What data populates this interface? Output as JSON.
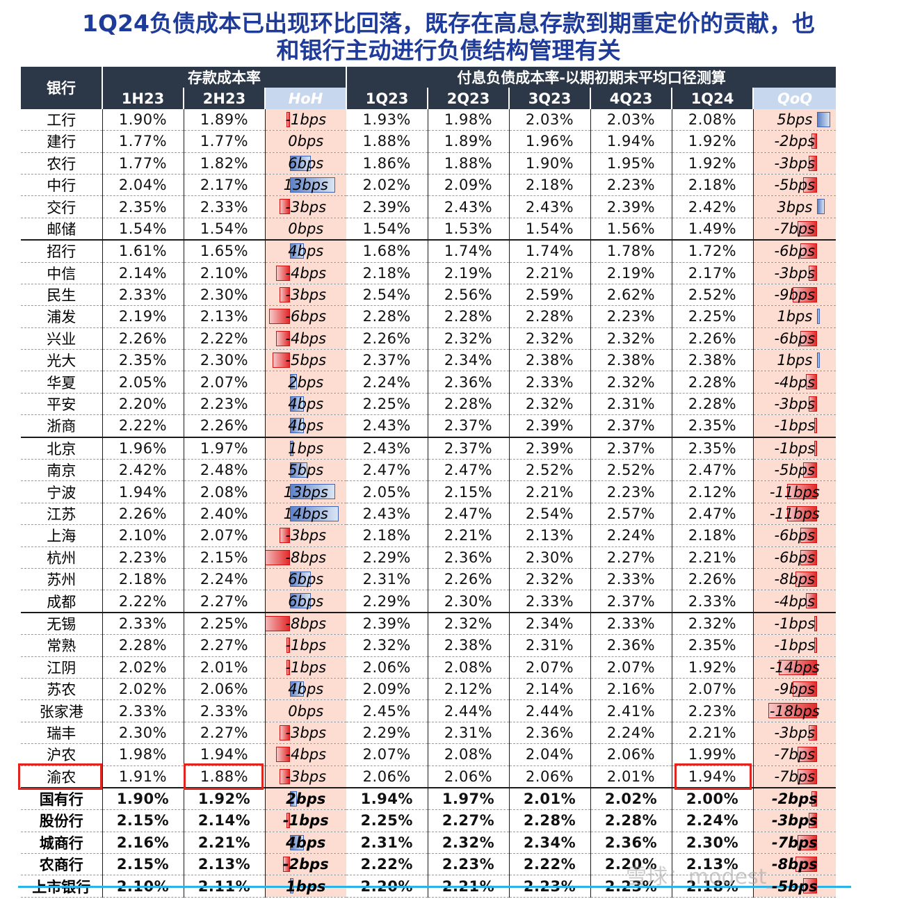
{
  "title": {
    "line1": "1Q24负债成本已出现环比回落，既存在高息存款到期重定价的贡献，也",
    "line2": "和银行主动进行负债结构管理有关"
  },
  "headers": {
    "bank": "银行",
    "group1": "存款成本率",
    "group2": "付息负债成本率-以期初期末平均口径测算",
    "cols": [
      "1H23",
      "2H23",
      "HoH",
      "1Q23",
      "2Q23",
      "3Q23",
      "4Q23",
      "1Q24",
      "QoQ"
    ]
  },
  "rows": [
    {
      "bank": "工行",
      "h1": "1.90%",
      "h2": "1.89%",
      "hoh": "-1bps",
      "hv": -1,
      "q1": "1.93%",
      "q2": "1.98%",
      "q3": "2.03%",
      "q4": "2.03%",
      "q5": "2.08%",
      "qoq": "5bps",
      "qv": 5
    },
    {
      "bank": "建行",
      "h1": "1.77%",
      "h2": "1.77%",
      "hoh": "0bps",
      "hv": 0,
      "q1": "1.88%",
      "q2": "1.89%",
      "q3": "1.96%",
      "q4": "1.94%",
      "q5": "1.92%",
      "qoq": "-2bps",
      "qv": -2
    },
    {
      "bank": "农行",
      "h1": "1.77%",
      "h2": "1.82%",
      "hoh": "6bps",
      "hv": 6,
      "q1": "1.86%",
      "q2": "1.88%",
      "q3": "1.90%",
      "q4": "1.95%",
      "q5": "1.92%",
      "qoq": "-3bps",
      "qv": -3
    },
    {
      "bank": "中行",
      "h1": "2.04%",
      "h2": "2.17%",
      "hoh": "13bps",
      "hv": 13,
      "q1": "2.02%",
      "q2": "2.09%",
      "q3": "2.18%",
      "q4": "2.23%",
      "q5": "2.18%",
      "qoq": "-5bps",
      "qv": -5
    },
    {
      "bank": "交行",
      "h1": "2.35%",
      "h2": "2.33%",
      "hoh": "-3bps",
      "hv": -3,
      "q1": "2.39%",
      "q2": "2.43%",
      "q3": "2.43%",
      "q4": "2.39%",
      "q5": "2.42%",
      "qoq": "3bps",
      "qv": 3
    },
    {
      "bank": "邮储",
      "h1": "1.54%",
      "h2": "1.54%",
      "hoh": "0bps",
      "hv": 0,
      "q1": "1.54%",
      "q2": "1.53%",
      "q3": "1.54%",
      "q4": "1.56%",
      "q5": "1.49%",
      "qoq": "-7bps",
      "qv": -7,
      "end": true
    },
    {
      "bank": "招行",
      "h1": "1.61%",
      "h2": "1.65%",
      "hoh": "4bps",
      "hv": 4,
      "q1": "1.68%",
      "q2": "1.74%",
      "q3": "1.74%",
      "q4": "1.78%",
      "q5": "1.72%",
      "qoq": "-6bps",
      "qv": -6
    },
    {
      "bank": "中信",
      "h1": "2.14%",
      "h2": "2.10%",
      "hoh": "-4bps",
      "hv": -4,
      "q1": "2.18%",
      "q2": "2.19%",
      "q3": "2.21%",
      "q4": "2.19%",
      "q5": "2.17%",
      "qoq": "-3bps",
      "qv": -3
    },
    {
      "bank": "民生",
      "h1": "2.33%",
      "h2": "2.30%",
      "hoh": "-3bps",
      "hv": -3,
      "q1": "2.54%",
      "q2": "2.56%",
      "q3": "2.59%",
      "q4": "2.62%",
      "q5": "2.52%",
      "qoq": "-9bps",
      "qv": -9
    },
    {
      "bank": "浦发",
      "h1": "2.19%",
      "h2": "2.13%",
      "hoh": "-6bps",
      "hv": -6,
      "q1": "2.28%",
      "q2": "2.28%",
      "q3": "2.28%",
      "q4": "2.23%",
      "q5": "2.25%",
      "qoq": "1bps",
      "qv": 1
    },
    {
      "bank": "兴业",
      "h1": "2.26%",
      "h2": "2.22%",
      "hoh": "-4bps",
      "hv": -4,
      "q1": "2.26%",
      "q2": "2.32%",
      "q3": "2.32%",
      "q4": "2.32%",
      "q5": "2.26%",
      "qoq": "-6bps",
      "qv": -6
    },
    {
      "bank": "光大",
      "h1": "2.35%",
      "h2": "2.30%",
      "hoh": "-5bps",
      "hv": -5,
      "q1": "2.37%",
      "q2": "2.34%",
      "q3": "2.38%",
      "q4": "2.38%",
      "q5": "2.38%",
      "qoq": "1bps",
      "qv": 1
    },
    {
      "bank": "华夏",
      "h1": "2.05%",
      "h2": "2.07%",
      "hoh": "2bps",
      "hv": 2,
      "q1": "2.24%",
      "q2": "2.36%",
      "q3": "2.33%",
      "q4": "2.32%",
      "q5": "2.28%",
      "qoq": "-4bps",
      "qv": -4
    },
    {
      "bank": "平安",
      "h1": "2.20%",
      "h2": "2.23%",
      "hoh": "4bps",
      "hv": 4,
      "q1": "2.25%",
      "q2": "2.28%",
      "q3": "2.32%",
      "q4": "2.31%",
      "q5": "2.28%",
      "qoq": "-3bps",
      "qv": -3
    },
    {
      "bank": "浙商",
      "h1": "2.22%",
      "h2": "2.26%",
      "hoh": "4bps",
      "hv": 4,
      "q1": "2.43%",
      "q2": "2.37%",
      "q3": "2.39%",
      "q4": "2.37%",
      "q5": "2.35%",
      "qoq": "-1bps",
      "qv": -1,
      "end": true
    },
    {
      "bank": "北京",
      "h1": "1.96%",
      "h2": "1.97%",
      "hoh": "1bps",
      "hv": 1,
      "q1": "2.43%",
      "q2": "2.37%",
      "q3": "2.39%",
      "q4": "2.37%",
      "q5": "2.35%",
      "qoq": "-1bps",
      "qv": -1
    },
    {
      "bank": "南京",
      "h1": "2.42%",
      "h2": "2.48%",
      "hoh": "5bps",
      "hv": 5,
      "q1": "2.47%",
      "q2": "2.47%",
      "q3": "2.52%",
      "q4": "2.52%",
      "q5": "2.47%",
      "qoq": "-5bps",
      "qv": -5
    },
    {
      "bank": "宁波",
      "h1": "1.94%",
      "h2": "2.08%",
      "hoh": "13bps",
      "hv": 13,
      "q1": "2.05%",
      "q2": "2.15%",
      "q3": "2.21%",
      "q4": "2.23%",
      "q5": "2.12%",
      "qoq": "-11bps",
      "qv": -11
    },
    {
      "bank": "江苏",
      "h1": "2.26%",
      "h2": "2.40%",
      "hoh": "14bps",
      "hv": 14,
      "q1": "2.43%",
      "q2": "2.47%",
      "q3": "2.54%",
      "q4": "2.57%",
      "q5": "2.47%",
      "qoq": "-11bps",
      "qv": -11
    },
    {
      "bank": "上海",
      "h1": "2.10%",
      "h2": "2.07%",
      "hoh": "-3bps",
      "hv": -3,
      "q1": "2.18%",
      "q2": "2.21%",
      "q3": "2.13%",
      "q4": "2.24%",
      "q5": "2.18%",
      "qoq": "-6bps",
      "qv": -6
    },
    {
      "bank": "杭州",
      "h1": "2.23%",
      "h2": "2.15%",
      "hoh": "-8bps",
      "hv": -8,
      "q1": "2.29%",
      "q2": "2.36%",
      "q3": "2.30%",
      "q4": "2.27%",
      "q5": "2.21%",
      "qoq": "-6bps",
      "qv": -6
    },
    {
      "bank": "苏州",
      "h1": "2.18%",
      "h2": "2.24%",
      "hoh": "6bps",
      "hv": 6,
      "q1": "2.31%",
      "q2": "2.26%",
      "q3": "2.32%",
      "q4": "2.33%",
      "q5": "2.26%",
      "qoq": "-8bps",
      "qv": -8
    },
    {
      "bank": "成都",
      "h1": "2.22%",
      "h2": "2.27%",
      "hoh": "6bps",
      "hv": 6,
      "q1": "2.29%",
      "q2": "2.30%",
      "q3": "2.33%",
      "q4": "2.37%",
      "q5": "2.33%",
      "qoq": "-4bps",
      "qv": -4,
      "end": true
    },
    {
      "bank": "无锡",
      "h1": "2.33%",
      "h2": "2.25%",
      "hoh": "-8bps",
      "hv": -8,
      "q1": "2.39%",
      "q2": "2.32%",
      "q3": "2.34%",
      "q4": "2.33%",
      "q5": "2.32%",
      "qoq": "-1bps",
      "qv": -1
    },
    {
      "bank": "常熟",
      "h1": "2.28%",
      "h2": "2.27%",
      "hoh": "-1bps",
      "hv": -1,
      "q1": "2.32%",
      "q2": "2.38%",
      "q3": "2.31%",
      "q4": "2.36%",
      "q5": "2.35%",
      "qoq": "-1bps",
      "qv": -1
    },
    {
      "bank": "江阴",
      "h1": "2.02%",
      "h2": "2.01%",
      "hoh": "-1bps",
      "hv": -1,
      "q1": "2.06%",
      "q2": "2.08%",
      "q3": "2.07%",
      "q4": "2.07%",
      "q5": "1.92%",
      "qoq": "-14bps",
      "qv": -14
    },
    {
      "bank": "苏农",
      "h1": "2.02%",
      "h2": "2.06%",
      "hoh": "4bps",
      "hv": 4,
      "q1": "2.09%",
      "q2": "2.12%",
      "q3": "2.14%",
      "q4": "2.16%",
      "q5": "2.07%",
      "qoq": "-9bps",
      "qv": -9
    },
    {
      "bank": "张家港",
      "h1": "2.33%",
      "h2": "2.33%",
      "hoh": "0bps",
      "hv": 0,
      "q1": "2.45%",
      "q2": "2.44%",
      "q3": "2.44%",
      "q4": "2.41%",
      "q5": "2.23%",
      "qoq": "-18bps",
      "qv": -18
    },
    {
      "bank": "瑞丰",
      "h1": "2.30%",
      "h2": "2.27%",
      "hoh": "-3bps",
      "hv": -3,
      "q1": "2.29%",
      "q2": "2.31%",
      "q3": "2.36%",
      "q4": "2.24%",
      "q5": "2.21%",
      "qoq": "-3bps",
      "qv": -3
    },
    {
      "bank": "沪农",
      "h1": "1.98%",
      "h2": "1.94%",
      "hoh": "-4bps",
      "hv": -4,
      "q1": "2.07%",
      "q2": "2.08%",
      "q3": "2.04%",
      "q4": "2.06%",
      "q5": "1.99%",
      "qoq": "-7bps",
      "qv": -7
    },
    {
      "bank": "渝农",
      "h1": "1.91%",
      "h2": "1.88%",
      "hoh": "-3bps",
      "hv": -3,
      "q1": "2.06%",
      "q2": "2.06%",
      "q3": "2.06%",
      "q4": "2.01%",
      "q5": "1.94%",
      "qoq": "-7bps",
      "qv": -7,
      "end": true
    },
    {
      "bank": "国有行",
      "h1": "1.90%",
      "h2": "1.92%",
      "hoh": "2bps",
      "hv": 2,
      "q1": "1.94%",
      "q2": "1.97%",
      "q3": "2.01%",
      "q4": "2.02%",
      "q5": "2.00%",
      "qoq": "-2bps",
      "qv": -2,
      "bold": true
    },
    {
      "bank": "股份行",
      "h1": "2.15%",
      "h2": "2.14%",
      "hoh": "-1bps",
      "hv": -1,
      "q1": "2.25%",
      "q2": "2.27%",
      "q3": "2.28%",
      "q4": "2.28%",
      "q5": "2.24%",
      "qoq": "-3bps",
      "qv": -3,
      "bold": true
    },
    {
      "bank": "城商行",
      "h1": "2.16%",
      "h2": "2.21%",
      "hoh": "4bps",
      "hv": 4,
      "q1": "2.31%",
      "q2": "2.32%",
      "q3": "2.34%",
      "q4": "2.36%",
      "q5": "2.30%",
      "qoq": "-7bps",
      "qv": -7,
      "bold": true
    },
    {
      "bank": "农商行",
      "h1": "2.15%",
      "h2": "2.13%",
      "hoh": "-2bps",
      "hv": -2,
      "q1": "2.22%",
      "q2": "2.23%",
      "q3": "2.22%",
      "q4": "2.20%",
      "q5": "2.13%",
      "qoq": "-8bps",
      "qv": -8,
      "bold": true
    },
    {
      "bank": "上市银行",
      "h1": "2.10%",
      "h2": "2.11%",
      "hoh": "1bps",
      "hv": 1,
      "q1": "2.20%",
      "q2": "2.21%",
      "q3": "2.23%",
      "q4": "2.23%",
      "q5": "2.18%",
      "qoq": "-5bps",
      "qv": -5,
      "bold": true
    }
  ],
  "watermark": "雪球：modest_",
  "colors": {
    "header_bg": "#2c3848",
    "title": "#1e3b9a",
    "bar_bg": "#fdddd2",
    "positive_bar": "#5e82c6",
    "negative_bar": "#e12b2b",
    "highlight_box": "#e0251f"
  }
}
